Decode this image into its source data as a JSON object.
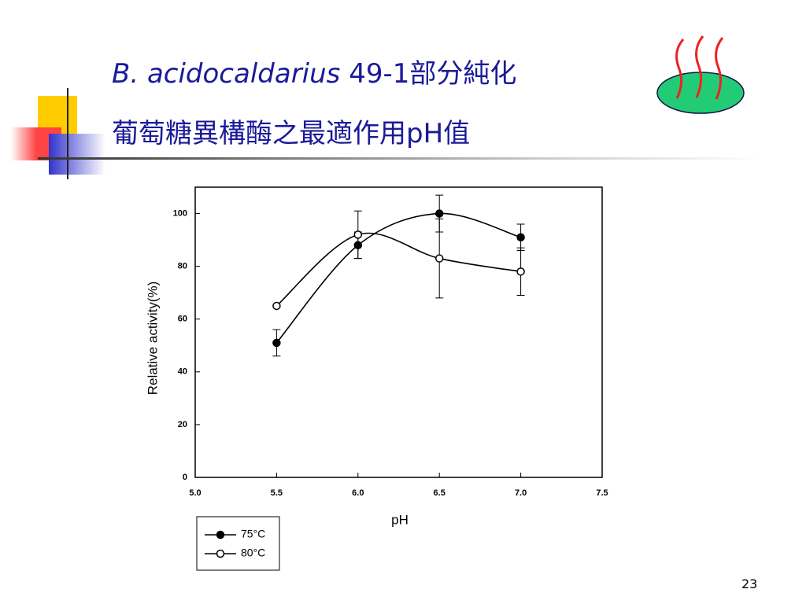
{
  "slide": {
    "title_italic": "B. acidocaldarius",
    "title_rest": "49-1部分純化",
    "title_line2": "葡萄糖異構酶之最適作用pH值",
    "page_number": "23"
  },
  "chart_data": {
    "type": "line",
    "x_label": "pH",
    "y_label": "Relative activity(%)",
    "x": [
      5.5,
      6.0,
      6.5,
      7.0
    ],
    "series": [
      {
        "name": "75°C",
        "color": "#000000",
        "marker": "filled",
        "values": [
          51,
          88,
          100,
          91
        ],
        "errors": [
          5,
          5,
          7,
          5
        ]
      },
      {
        "name": "80°C",
        "color": "#000000",
        "marker": "open",
        "values": [
          65,
          92,
          83,
          78
        ],
        "errors": [
          null,
          9,
          15,
          9
        ]
      }
    ],
    "xlim": [
      5.0,
      7.5
    ],
    "xticks": [
      {
        "value": 5.0,
        "label": "5.0"
      },
      5.5,
      {
        "value": 6.0,
        "label": "6.0"
      },
      6.5,
      {
        "value": 7.0,
        "label": "7.0"
      },
      7.5
    ],
    "ylim": [
      0,
      110
    ],
    "yticks": [
      0,
      20,
      40,
      60,
      80,
      100
    ]
  }
}
